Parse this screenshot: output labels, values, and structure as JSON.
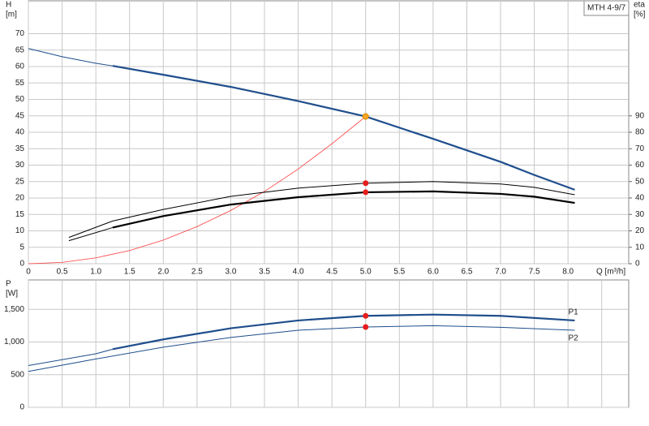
{
  "chart_data": [
    {
      "type": "line",
      "label_box": "MTH 4-9/7",
      "ylabel": [
        "H",
        "[m]"
      ],
      "y2label": [
        "eta",
        "[%]"
      ],
      "xlabel": "Q [m³/h]",
      "xlim": [
        0,
        8.9
      ],
      "ylim": [
        0,
        80
      ],
      "y2lim": [
        0,
        160
      ],
      "grid": true,
      "xticks": [
        0,
        0.5,
        {
          "value": 1,
          "label": "1.0"
        },
        1.5,
        {
          "value": 2,
          "label": "2.0"
        },
        2.5,
        {
          "value": 3,
          "label": "3.0"
        },
        3.5,
        {
          "value": 4,
          "label": "4.0"
        },
        4.5,
        {
          "value": 5,
          "label": "5.0"
        },
        5.5,
        {
          "value": 6,
          "label": "6.0"
        },
        6.5,
        {
          "value": 7,
          "label": "7.0"
        },
        7.5,
        {
          "value": 8,
          "label": "8.0"
        }
      ],
      "yticks": [
        0,
        5,
        10,
        15,
        20,
        25,
        30,
        35,
        40,
        45,
        50,
        55,
        60,
        65,
        70
      ],
      "y2ticks": [
        0,
        10,
        20,
        30,
        40,
        50,
        60,
        70,
        80,
        90
      ],
      "series": [
        {
          "color": "#1f4e8c",
          "width": 1,
          "x": [
            0,
            0.5,
            1,
            1.25
          ],
          "values": [
            65.5,
            63,
            61,
            60.2
          ]
        },
        {
          "color": "#1f4e8c",
          "width": 2.2,
          "x": [
            1.25,
            2,
            3,
            4,
            5,
            6,
            7,
            7.5,
            8.1
          ],
          "values": [
            60.2,
            57.5,
            53.8,
            49.5,
            44.8,
            38,
            31,
            27,
            22.5
          ]
        },
        {
          "color": "#ff3b3b",
          "width": 0.8,
          "x": [
            0,
            0.5,
            1,
            1.5,
            2,
            2.5,
            3,
            3.5,
            4,
            4.5,
            5
          ],
          "values": [
            0,
            0.4,
            1.8,
            4,
            7.2,
            11.3,
            16.2,
            22,
            28.8,
            36.5,
            44.8
          ]
        },
        {
          "color": "#000000",
          "width": 1,
          "axis": "y2",
          "x": [
            0.6,
            1.25,
            2,
            3,
            4,
            5,
            6,
            7,
            7.5,
            8.1
          ],
          "values": [
            16,
            26,
            33,
            41,
            46,
            49,
            50,
            48.5,
            46.5,
            42
          ]
        },
        {
          "color": "#000000",
          "width": 1,
          "axis": "y2",
          "x": [
            0.6,
            1.25
          ],
          "values": [
            14,
            22
          ]
        },
        {
          "color": "#000000",
          "width": 2.2,
          "axis": "y2",
          "x": [
            1.25,
            2,
            3,
            4,
            5,
            6,
            7,
            7.5,
            8.1
          ],
          "values": [
            22,
            29,
            36,
            40.5,
            43.5,
            44,
            42.5,
            40.8,
            37
          ]
        },
        {
          "color": "#f5a623",
          "marker": true,
          "x": [
            5
          ],
          "values": [
            44.8
          ]
        },
        {
          "color": "#e51c1c",
          "marker": true,
          "axis": "y2",
          "x": [
            5
          ],
          "values": [
            49
          ]
        },
        {
          "color": "#e51c1c",
          "marker": true,
          "axis": "y2",
          "x": [
            5
          ],
          "values": [
            43.5
          ]
        }
      ]
    },
    {
      "type": "line",
      "ylabel": [
        "P",
        "[W]"
      ],
      "xlim": [
        0,
        8.9
      ],
      "ylim": [
        0,
        1950
      ],
      "grid": true,
      "xticks": [
        0,
        0.5,
        1,
        1.5,
        2,
        2.5,
        3,
        3.5,
        4,
        4.5,
        5,
        5.5,
        6,
        6.5,
        7,
        7.5,
        8,
        8.5
      ],
      "yticks": [
        0,
        500,
        {
          "value": 1000,
          "label": "1,000"
        },
        {
          "value": 1500,
          "label": "1,500"
        }
      ],
      "series": [
        {
          "color": "#1f4e8c",
          "width": 1,
          "x": [
            0,
            1,
            1.25
          ],
          "values": [
            640,
            820,
            890
          ]
        },
        {
          "name": "P1",
          "color": "#1f4e8c",
          "width": 2.2,
          "x": [
            1.25,
            2,
            3,
            4,
            5,
            6,
            7,
            8.1
          ],
          "values": [
            890,
            1040,
            1210,
            1330,
            1400,
            1420,
            1400,
            1330
          ]
        },
        {
          "name": "P2",
          "color": "#1f4e8c",
          "width": 1,
          "x": [
            0,
            1,
            2,
            3,
            4,
            5,
            6,
            7,
            8.1
          ],
          "values": [
            550,
            740,
            920,
            1070,
            1180,
            1230,
            1250,
            1225,
            1180
          ]
        },
        {
          "color": "#e51c1c",
          "marker": true,
          "x": [
            5
          ],
          "values": [
            1400
          ]
        },
        {
          "color": "#e51c1c",
          "marker": true,
          "x": [
            5
          ],
          "values": [
            1230
          ]
        }
      ]
    }
  ]
}
